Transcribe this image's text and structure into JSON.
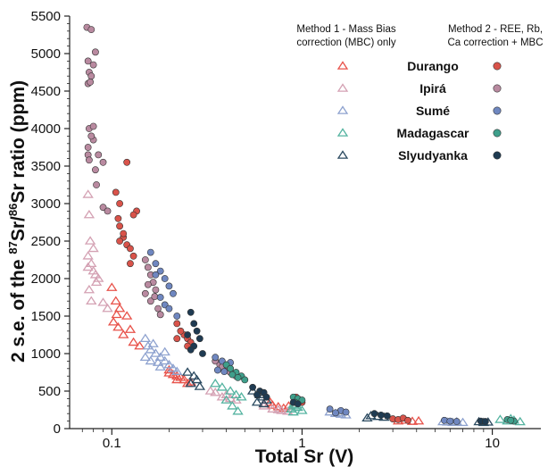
{
  "chart_data": {
    "type": "scatter",
    "xscale": "log",
    "xlim": [
      0.06,
      18
    ],
    "ylim": [
      0,
      5500
    ],
    "xlabel": "Total Sr (V)",
    "ylabel_parts": {
      "prefix": "2 s.e. of the ",
      "sup1": "87",
      "mid": "Sr/",
      "sup2": "86",
      "suffix": "Sr ratio (ppm)"
    },
    "x_ticks": [
      {
        "value": 0.1,
        "label": "0.1"
      },
      {
        "value": 1,
        "label": "1"
      },
      {
        "value": 10,
        "label": "10"
      }
    ],
    "y_ticks": [
      0,
      500,
      1000,
      1500,
      2000,
      2500,
      3000,
      3500,
      4000,
      4500,
      5000,
      5500
    ],
    "grid": false,
    "legend": {
      "placement": "top-right",
      "method1_title": [
        "Method 1 - Mass Bias",
        "correction (MBC) only"
      ],
      "method2_title": [
        "Method 2 -  REE, Rb,",
        "Ca correction + MBC"
      ],
      "entries": [
        "Durango",
        "Ipirá",
        "Sumé",
        "Madagascar",
        "Slyudyanka"
      ]
    },
    "series": [
      {
        "name": "Durango",
        "method": "Method 1",
        "marker": "open-triangle",
        "color": "#e8524a",
        "points": [
          [
            0.1,
            1880
          ],
          [
            0.105,
            1700
          ],
          [
            0.11,
            1600
          ],
          [
            0.102,
            1420
          ],
          [
            0.108,
            1350
          ],
          [
            0.12,
            1500
          ],
          [
            0.13,
            1150
          ],
          [
            0.115,
            1250
          ],
          [
            0.125,
            1320
          ],
          [
            0.106,
            1520
          ],
          [
            0.14,
            1100
          ],
          [
            0.2,
            780
          ],
          [
            0.22,
            700
          ],
          [
            0.21,
            720
          ],
          [
            0.24,
            650
          ],
          [
            0.23,
            680
          ],
          [
            0.26,
            620
          ],
          [
            0.25,
            600
          ],
          [
            0.2,
            740
          ],
          [
            0.22,
            650
          ],
          [
            0.63,
            330
          ],
          [
            0.7,
            310
          ],
          [
            0.75,
            290
          ],
          [
            0.8,
            270
          ],
          [
            0.85,
            300
          ],
          [
            0.68,
            350
          ],
          [
            3.2,
            100
          ],
          [
            3.5,
            110
          ],
          [
            3.8,
            95
          ],
          [
            4.1,
            100
          ]
        ]
      },
      {
        "name": "Durango",
        "method": "Method 2",
        "marker": "filled-circle",
        "color": "#d9534a",
        "points": [
          [
            0.105,
            3150
          ],
          [
            0.11,
            3000
          ],
          [
            0.12,
            3550
          ],
          [
            0.108,
            2800
          ],
          [
            0.11,
            2700
          ],
          [
            0.115,
            2550
          ],
          [
            0.12,
            2450
          ],
          [
            0.13,
            2300
          ],
          [
            0.125,
            2200
          ],
          [
            0.135,
            2900
          ],
          [
            0.13,
            2850
          ],
          [
            0.115,
            2600
          ],
          [
            0.11,
            2500
          ],
          [
            0.125,
            2400
          ],
          [
            0.22,
            1400
          ],
          [
            0.24,
            1250
          ],
          [
            0.25,
            1200
          ],
          [
            0.23,
            1300
          ],
          [
            0.26,
            1150
          ],
          [
            0.25,
            1100
          ],
          [
            0.22,
            1200
          ],
          [
            0.95,
            380
          ],
          [
            1.0,
            350
          ],
          [
            0.93,
            420
          ],
          [
            3.0,
            130
          ],
          [
            3.2,
            120
          ],
          [
            3.4,
            140
          ],
          [
            3.6,
            110
          ]
        ]
      },
      {
        "name": "Ipirá",
        "method": "Method 1",
        "marker": "open-triangle",
        "color": "#d4a1b3",
        "points": [
          [
            0.075,
            3120
          ],
          [
            0.076,
            2850
          ],
          [
            0.077,
            2500
          ],
          [
            0.075,
            2300
          ],
          [
            0.078,
            2200
          ],
          [
            0.08,
            2100
          ],
          [
            0.082,
            2050
          ],
          [
            0.076,
            1850
          ],
          [
            0.078,
            1700
          ],
          [
            0.085,
            2000
          ],
          [
            0.09,
            1680
          ],
          [
            0.095,
            1600
          ],
          [
            0.08,
            2400
          ],
          [
            0.075,
            2150
          ],
          [
            0.083,
            1950
          ],
          [
            0.33,
            500
          ],
          [
            0.35,
            480
          ],
          [
            0.38,
            420
          ],
          [
            0.4,
            450
          ],
          [
            0.45,
            380
          ],
          [
            0.42,
            400
          ],
          [
            0.63,
            300
          ],
          [
            0.7,
            260
          ],
          [
            0.75,
            250
          ],
          [
            0.78,
            240
          ],
          [
            0.84,
            230
          ]
        ]
      },
      {
        "name": "Ipirá",
        "method": "Method 2",
        "marker": "filled-circle",
        "color": "#b98aa0",
        "points": [
          [
            0.074,
            5350
          ],
          [
            0.078,
            5320
          ],
          [
            0.082,
            5020
          ],
          [
            0.075,
            4900
          ],
          [
            0.076,
            4750
          ],
          [
            0.078,
            4700
          ],
          [
            0.08,
            4850
          ],
          [
            0.075,
            4600
          ],
          [
            0.077,
            4620
          ],
          [
            0.076,
            4000
          ],
          [
            0.08,
            3850
          ],
          [
            0.078,
            3900
          ],
          [
            0.075,
            3650
          ],
          [
            0.076,
            3580
          ],
          [
            0.085,
            3650
          ],
          [
            0.082,
            3450
          ],
          [
            0.09,
            3550
          ],
          [
            0.075,
            3750
          ],
          [
            0.08,
            4030
          ],
          [
            0.083,
            3250
          ],
          [
            0.09,
            2950
          ],
          [
            0.095,
            2900
          ],
          [
            0.15,
            2250
          ],
          [
            0.155,
            2150
          ],
          [
            0.16,
            2050
          ],
          [
            0.165,
            1950
          ],
          [
            0.17,
            1850
          ],
          [
            0.15,
            1800
          ],
          [
            0.16,
            1700
          ],
          [
            0.175,
            1600
          ],
          [
            0.18,
            1520
          ],
          [
            0.155,
            1920
          ],
          [
            0.168,
            1760
          ],
          [
            0.35,
            900
          ],
          [
            0.37,
            850
          ],
          [
            0.4,
            800
          ],
          [
            0.42,
            750
          ],
          [
            0.45,
            700
          ],
          [
            0.38,
            820
          ]
        ]
      },
      {
        "name": "Sumé",
        "method": "Method 1",
        "marker": "open-triangle",
        "color": "#8ea2cf",
        "points": [
          [
            0.15,
            1200
          ],
          [
            0.155,
            1100
          ],
          [
            0.16,
            1050
          ],
          [
            0.17,
            1000
          ],
          [
            0.18,
            950
          ],
          [
            0.19,
            900
          ],
          [
            0.2,
            850
          ],
          [
            0.15,
            950
          ],
          [
            0.16,
            900
          ],
          [
            0.175,
            880
          ],
          [
            0.18,
            820
          ],
          [
            0.165,
            1130
          ],
          [
            0.21,
            800
          ],
          [
            0.22,
            760
          ],
          [
            0.19,
            1020
          ],
          [
            1.4,
            220
          ],
          [
            1.5,
            200
          ],
          [
            1.6,
            190
          ],
          [
            1.7,
            180
          ],
          [
            1.55,
            210
          ],
          [
            5.5,
            90
          ],
          [
            5.8,
            85
          ],
          [
            6.2,
            80
          ],
          [
            6.5,
            90
          ],
          [
            7.0,
            80
          ]
        ]
      },
      {
        "name": "Sumé",
        "method": "Method 2",
        "marker": "filled-circle",
        "color": "#6f87c0",
        "points": [
          [
            0.16,
            2350
          ],
          [
            0.17,
            2200
          ],
          [
            0.18,
            2100
          ],
          [
            0.19,
            2000
          ],
          [
            0.2,
            1900
          ],
          [
            0.21,
            1800
          ],
          [
            0.18,
            1750
          ],
          [
            0.19,
            1650
          ],
          [
            0.2,
            1600
          ],
          [
            0.17,
            2050
          ],
          [
            0.22,
            1500
          ],
          [
            0.35,
            950
          ],
          [
            0.38,
            900
          ],
          [
            0.4,
            850
          ],
          [
            0.42,
            880
          ],
          [
            0.36,
            780
          ],
          [
            0.39,
            760
          ],
          [
            1.4,
            260
          ],
          [
            1.6,
            240
          ],
          [
            1.7,
            220
          ],
          [
            1.5,
            210
          ],
          [
            5.6,
            110
          ],
          [
            6.0,
            100
          ],
          [
            6.5,
            95
          ]
        ]
      },
      {
        "name": "Madagascar",
        "method": "Method 1",
        "marker": "open-triangle",
        "color": "#54b3a0",
        "points": [
          [
            0.35,
            600
          ],
          [
            0.38,
            550
          ],
          [
            0.42,
            500
          ],
          [
            0.45,
            450
          ],
          [
            0.48,
            420
          ],
          [
            0.4,
            380
          ],
          [
            0.43,
            300
          ],
          [
            0.46,
            230
          ],
          [
            0.9,
            320
          ],
          [
            0.92,
            300
          ],
          [
            0.95,
            280
          ],
          [
            0.88,
            260
          ],
          [
            1.0,
            240
          ],
          [
            0.9,
            220
          ],
          [
            11,
            120
          ],
          [
            12,
            100
          ],
          [
            13,
            110
          ],
          [
            14,
            90
          ],
          [
            12.5,
            130
          ]
        ]
      },
      {
        "name": "Madagascar",
        "method": "Method 2",
        "marker": "filled-circle",
        "color": "#3f9f8b",
        "points": [
          [
            0.4,
            850
          ],
          [
            0.42,
            800
          ],
          [
            0.45,
            750
          ],
          [
            0.48,
            700
          ],
          [
            0.5,
            650
          ],
          [
            0.43,
            720
          ],
          [
            0.46,
            680
          ],
          [
            0.9,
            420
          ],
          [
            0.95,
            400
          ],
          [
            1.0,
            380
          ],
          [
            0.92,
            350
          ],
          [
            12,
            120
          ],
          [
            13,
            100
          ],
          [
            12.5,
            110
          ]
        ]
      },
      {
        "name": "Slyudyanka",
        "method": "Method 1",
        "marker": "open-triangle",
        "color": "#2b4a60",
        "points": [
          [
            0.25,
            750
          ],
          [
            0.27,
            700
          ],
          [
            0.28,
            650
          ],
          [
            0.26,
            600
          ],
          [
            0.29,
            560
          ],
          [
            0.55,
            500
          ],
          [
            0.6,
            450
          ],
          [
            0.62,
            420
          ],
          [
            0.65,
            380
          ],
          [
            0.58,
            350
          ],
          [
            0.63,
            330
          ],
          [
            2.3,
            170
          ],
          [
            2.5,
            160
          ],
          [
            2.7,
            150
          ],
          [
            2.2,
            140
          ],
          [
            8.5,
            90
          ],
          [
            9.0,
            80
          ],
          [
            9.5,
            85
          ]
        ]
      },
      {
        "name": "Slyudyanka",
        "method": "Method 2",
        "marker": "filled-circle",
        "color": "#1f3b52",
        "points": [
          [
            0.26,
            1550
          ],
          [
            0.27,
            1400
          ],
          [
            0.28,
            1300
          ],
          [
            0.25,
            1250
          ],
          [
            0.29,
            1200
          ],
          [
            0.27,
            1100
          ],
          [
            0.3,
            1000
          ],
          [
            0.26,
            1050
          ],
          [
            0.55,
            550
          ],
          [
            0.6,
            500
          ],
          [
            0.63,
            480
          ],
          [
            0.58,
            450
          ],
          [
            0.65,
            420
          ],
          [
            0.9,
            350
          ],
          [
            0.95,
            330
          ],
          [
            2.4,
            200
          ],
          [
            2.6,
            180
          ],
          [
            2.8,
            170
          ],
          [
            8.7,
            100
          ],
          [
            9.2,
            95
          ]
        ]
      }
    ]
  }
}
